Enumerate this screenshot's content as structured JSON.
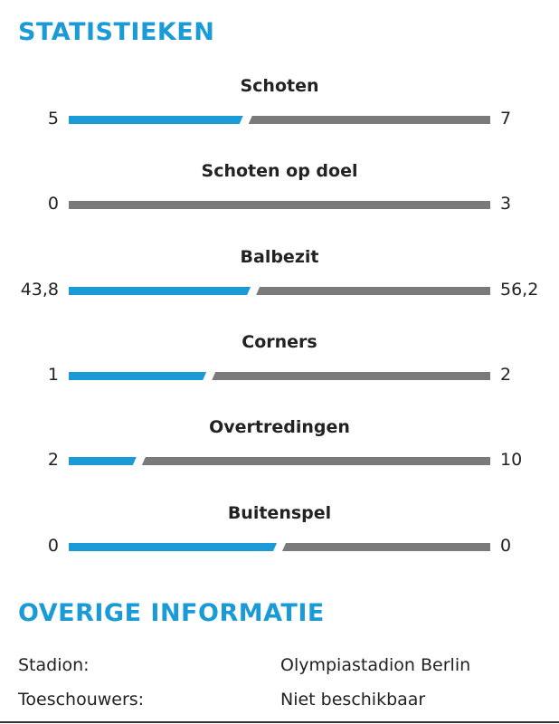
{
  "statistics": {
    "title": "STATISTIEKEN",
    "home_color": "#1a9ad6",
    "away_color": "#7a7a7a",
    "items": [
      {
        "label": "Schoten",
        "home": "5",
        "away": "7",
        "home_share": 0.42
      },
      {
        "label": "Schoten op doel",
        "home": "0",
        "away": "3",
        "home_share": 0.0
      },
      {
        "label": "Balbezit",
        "home": "43,8",
        "away": "56,2",
        "home_share": 0.438
      },
      {
        "label": "Corners",
        "home": "1",
        "away": "2",
        "home_share": 0.333
      },
      {
        "label": "Overtredingen",
        "home": "2",
        "away": "10",
        "home_share": 0.167
      },
      {
        "label": "Buitenspel",
        "home": "0",
        "away": "0",
        "home_share": 0.5
      }
    ]
  },
  "info": {
    "title": "OVERIGE INFORMATIE",
    "rows": [
      {
        "key": "Stadion:",
        "value": "Olympiastadion Berlin"
      },
      {
        "key": "Toeschouwers:",
        "value": "Niet beschikbaar"
      }
    ]
  }
}
